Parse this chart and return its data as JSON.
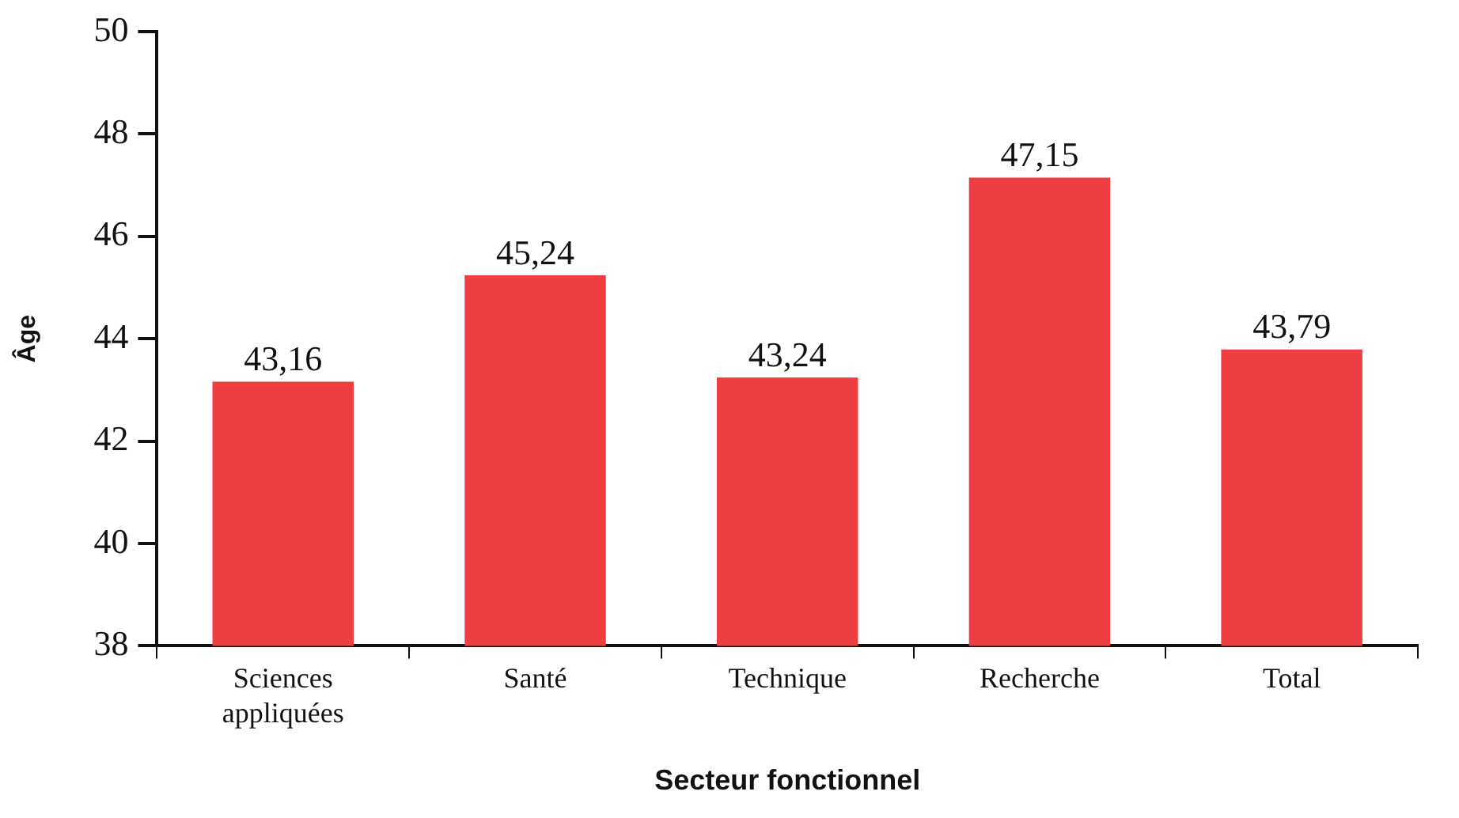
{
  "chart_data": {
    "type": "bar",
    "xlabel": "Secteur fonctionnel",
    "ylabel": "Âge",
    "categories": [
      "Sciences appliquées",
      "Santé",
      "Technique",
      "Recherche",
      "Total"
    ],
    "values": [
      43.16,
      45.24,
      43.24,
      47.15,
      43.79
    ],
    "value_labels": [
      "43,16",
      "45,24",
      "43,24",
      "47,15",
      "43,79"
    ],
    "color": "#ef3e42",
    "ylim": [
      38,
      50
    ],
    "yticks": [
      38,
      40,
      42,
      44,
      46,
      48,
      50
    ],
    "grid": false,
    "legend": false
  }
}
